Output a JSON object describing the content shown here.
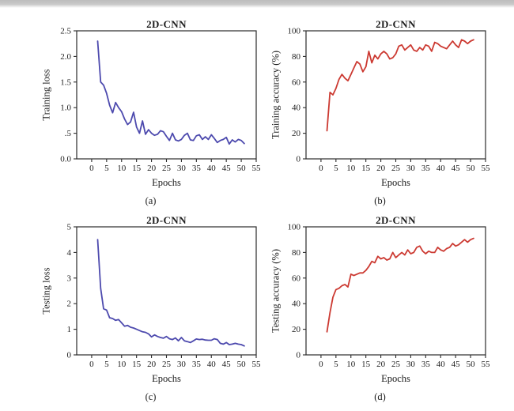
{
  "figure": {
    "background": "#ffffff",
    "axis_color": "#2b2b2b",
    "text_color": "#1c1c1c"
  },
  "chart_data": [
    {
      "id": "a",
      "type": "line",
      "title": "2D-CNN",
      "xlabel": "Epochs",
      "ylabel": "Training loss",
      "caption": "(a)",
      "line_color": "#4d4aae",
      "grid": false,
      "legend": "none",
      "xlim": [
        -5,
        55
      ],
      "ylim": [
        0,
        2.5
      ],
      "xticks": [
        0,
        5,
        10,
        15,
        20,
        25,
        30,
        35,
        40,
        45,
        50,
        55
      ],
      "ytick_values": [
        0,
        0.5,
        1.0,
        1.5,
        2.0,
        2.5
      ],
      "ytick_labels": [
        "0.0",
        ".5",
        "1.0",
        "1.5",
        "2.0",
        "2.5"
      ],
      "x": [
        2,
        3,
        4,
        5,
        6,
        7,
        8,
        9,
        10,
        11,
        12,
        13,
        14,
        15,
        16,
        17,
        18,
        19,
        20,
        21,
        22,
        23,
        24,
        25,
        26,
        27,
        28,
        29,
        30,
        31,
        32,
        33,
        34,
        35,
        36,
        37,
        38,
        39,
        40,
        41,
        42,
        43,
        44,
        45,
        46,
        47,
        48,
        49,
        50,
        51
      ],
      "y": [
        2.3,
        1.5,
        1.44,
        1.28,
        1.05,
        0.9,
        1.1,
        1.0,
        0.92,
        0.78,
        0.67,
        0.72,
        0.91,
        0.62,
        0.5,
        0.74,
        0.48,
        0.57,
        0.5,
        0.46,
        0.48,
        0.55,
        0.53,
        0.44,
        0.36,
        0.5,
        0.37,
        0.35,
        0.38,
        0.46,
        0.5,
        0.37,
        0.36,
        0.45,
        0.47,
        0.38,
        0.43,
        0.38,
        0.47,
        0.4,
        0.32,
        0.36,
        0.38,
        0.42,
        0.29,
        0.37,
        0.33,
        0.38,
        0.36,
        0.3
      ]
    },
    {
      "id": "b",
      "type": "line",
      "title": "2D-CNN",
      "xlabel": "Epochs",
      "ylabel": "Training accuracy (%)",
      "caption": "(b)",
      "line_color": "#cc3a32",
      "grid": false,
      "legend": "none",
      "xlim": [
        -5,
        55
      ],
      "ylim": [
        0,
        100
      ],
      "xticks": [
        0,
        5,
        10,
        15,
        20,
        25,
        30,
        35,
        40,
        45,
        50,
        55
      ],
      "ytick_values": [
        0,
        20,
        40,
        60,
        80,
        100
      ],
      "ytick_labels": [
        "0",
        "20",
        "40",
        "60",
        "80",
        "100"
      ],
      "x": [
        2,
        3,
        4,
        5,
        6,
        7,
        8,
        9,
        10,
        11,
        12,
        13,
        14,
        15,
        16,
        17,
        18,
        19,
        20,
        21,
        22,
        23,
        24,
        25,
        26,
        27,
        28,
        29,
        30,
        31,
        32,
        33,
        34,
        35,
        36,
        37,
        38,
        39,
        40,
        41,
        42,
        43,
        44,
        45,
        46,
        47,
        48,
        49,
        50,
        51
      ],
      "y": [
        22,
        52,
        50,
        55,
        62,
        66,
        63,
        61,
        66,
        71,
        76,
        74,
        68,
        72,
        84,
        75,
        81,
        78,
        82,
        84,
        82,
        78,
        79,
        82,
        88,
        89,
        85,
        87,
        89,
        85,
        84,
        87,
        85,
        89,
        88,
        84,
        91,
        90,
        88,
        87,
        86,
        89,
        92,
        89,
        87,
        93,
        92,
        90,
        92,
        93
      ]
    },
    {
      "id": "c",
      "type": "line",
      "title": "2D-CNN",
      "xlabel": "Epochs",
      "ylabel": "Testing loss",
      "caption": "(c)",
      "line_color": "#4d4aae",
      "grid": false,
      "legend": "none",
      "xlim": [
        -5,
        55
      ],
      "ylim": [
        0,
        5
      ],
      "xticks": [
        0,
        5,
        10,
        15,
        20,
        25,
        30,
        35,
        40,
        45,
        50,
        55
      ],
      "ytick_values": [
        0,
        1,
        2,
        3,
        4,
        5
      ],
      "ytick_labels": [
        "0",
        "1",
        "2",
        "3",
        "4",
        "5"
      ],
      "x": [
        2,
        3,
        4,
        5,
        6,
        7,
        8,
        9,
        10,
        11,
        12,
        13,
        14,
        15,
        16,
        17,
        18,
        19,
        20,
        21,
        22,
        23,
        24,
        25,
        26,
        27,
        28,
        29,
        30,
        31,
        32,
        33,
        34,
        35,
        36,
        37,
        38,
        39,
        40,
        41,
        42,
        43,
        44,
        45,
        46,
        47,
        48,
        49,
        50,
        51
      ],
      "y": [
        4.5,
        2.6,
        1.8,
        1.75,
        1.45,
        1.42,
        1.35,
        1.38,
        1.25,
        1.12,
        1.15,
        1.08,
        1.05,
        1.0,
        0.95,
        0.9,
        0.88,
        0.82,
        0.7,
        0.78,
        0.72,
        0.68,
        0.65,
        0.72,
        0.63,
        0.6,
        0.66,
        0.55,
        0.68,
        0.55,
        0.52,
        0.48,
        0.55,
        0.62,
        0.6,
        0.61,
        0.58,
        0.57,
        0.57,
        0.63,
        0.6,
        0.45,
        0.42,
        0.48,
        0.4,
        0.42,
        0.45,
        0.42,
        0.4,
        0.35
      ]
    },
    {
      "id": "d",
      "type": "line",
      "title": "2D-CNN",
      "xlabel": "Epochs",
      "ylabel": "Testing accuracy (%)",
      "caption": "(d)",
      "line_color": "#cc3a32",
      "grid": false,
      "legend": "none",
      "xlim": [
        -5,
        55
      ],
      "ylim": [
        0,
        100
      ],
      "xticks": [
        0,
        5,
        10,
        15,
        20,
        25,
        30,
        35,
        40,
        45,
        50,
        55
      ],
      "ytick_values": [
        0,
        20,
        40,
        60,
        80,
        100
      ],
      "ytick_labels": [
        "0",
        "20",
        "40",
        "60",
        "80",
        "100"
      ],
      "x": [
        2,
        3,
        4,
        5,
        6,
        7,
        8,
        9,
        10,
        11,
        12,
        13,
        14,
        15,
        16,
        17,
        18,
        19,
        20,
        21,
        22,
        23,
        24,
        25,
        26,
        27,
        28,
        29,
        30,
        31,
        32,
        33,
        34,
        35,
        36,
        37,
        38,
        39,
        40,
        41,
        42,
        43,
        44,
        45,
        46,
        47,
        48,
        49,
        50,
        51
      ],
      "y": [
        18,
        33,
        45,
        51,
        52,
        54,
        55,
        53,
        63,
        62,
        63,
        64,
        64,
        66,
        69,
        73,
        72,
        77,
        75,
        76,
        74,
        75,
        80,
        76,
        78,
        80,
        78,
        82,
        79,
        80,
        84,
        85,
        81,
        79,
        81,
        80,
        80,
        84,
        82,
        81,
        83,
        84,
        87,
        85,
        86,
        88,
        90,
        88,
        90,
        91
      ]
    }
  ]
}
